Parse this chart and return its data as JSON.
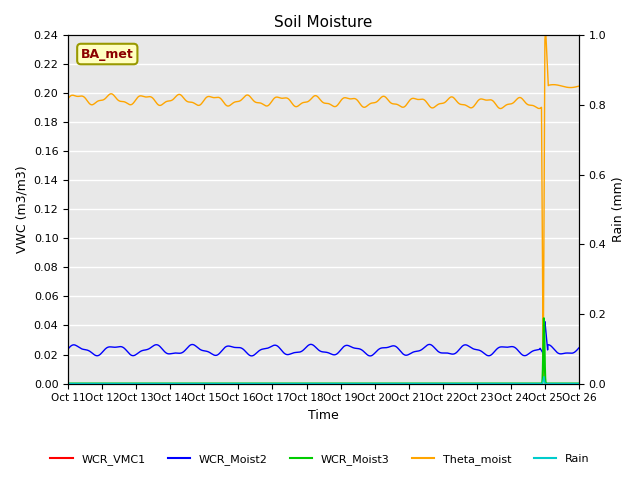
{
  "title": "Soil Moisture",
  "ylabel_left": "VWC (m3/m3)",
  "ylabel_right": "Rain (mm)",
  "xlabel": "Time",
  "ylim_left": [
    0.0,
    0.24
  ],
  "ylim_right": [
    0.0,
    1.0
  ],
  "background_color": "#e8e8e8",
  "annotation_text": "BA_met",
  "annotation_facecolor": "#ffffc0",
  "annotation_edgecolor": "#999900",
  "annotation_textcolor": "#8B0000",
  "colors": {
    "WCR_VMC1": "#ff0000",
    "WCR_Moist2": "#0000ff",
    "WCR_Moist3": "#00cc00",
    "Theta_moist": "#ffa500",
    "Rain": "#00cccc"
  },
  "x_tick_labels": [
    "Oct 11",
    "Oct 12",
    "Oct 13",
    "Oct 14",
    "Oct 15",
    "Oct 16",
    "Oct 17",
    "Oct 18",
    "Oct 19",
    "Oct 20",
    "Oct 21",
    "Oct 22",
    "Oct 23",
    "Oct 24",
    "Oct 25",
    "Oct 26"
  ]
}
